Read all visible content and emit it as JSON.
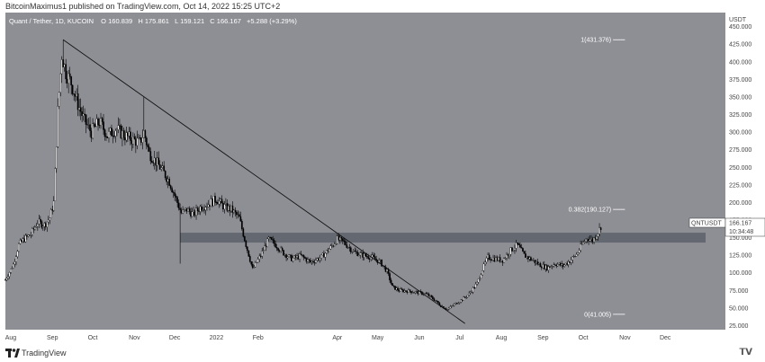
{
  "header": {
    "publisher": "BitcoinMaximus1 published on TradingView.com, Oct 14, 2022 15:25 UTC+2"
  },
  "footer": {
    "brand": "TradingView"
  },
  "colors": {
    "background": "#8e8f95",
    "candle": "#000000",
    "trendline": "#111111",
    "zone": "#555c66",
    "axis_bg": "#ffffff",
    "text": "#ffffff"
  },
  "chart_data": {
    "type": "candlestick",
    "symbol_label": "Quant / Tether, 1D, KUCOIN",
    "ohlc": {
      "open_label": "O",
      "open": "160.839",
      "high_label": "H",
      "high": "175.861",
      "low_label": "L",
      "low": "159.121",
      "close_label": "C",
      "close": "166.167",
      "change": "+5.288 (+3.29%)"
    },
    "currency": "USDT",
    "price_tag": "QNTUSDT",
    "last_price": "166.167",
    "countdown": "10:34:48",
    "ylim": [
      0,
      470
    ],
    "yticks": [
      "450.000",
      "425.000",
      "400.000",
      "375.000",
      "350.000",
      "325.000",
      "300.000",
      "275.000",
      "250.000",
      "225.000",
      "200.000",
      "175.000",
      "150.000",
      "125.000",
      "100.000",
      "75.000",
      "50.000",
      "25.000"
    ],
    "x_range": [
      "2021-07-28",
      "2022-12-31"
    ],
    "xticks": [
      {
        "label": "Aug",
        "date": "2021-08-01"
      },
      {
        "label": "Sep",
        "date": "2021-09-01"
      },
      {
        "label": "Oct",
        "date": "2021-10-01"
      },
      {
        "label": "Nov",
        "date": "2021-11-01"
      },
      {
        "label": "Dec",
        "date": "2021-12-01"
      },
      {
        "label": "2022",
        "date": "2022-01-01"
      },
      {
        "label": "Feb",
        "date": "2022-02-01"
      },
      {
        "label": "Apr",
        "date": "2022-04-01"
      },
      {
        "label": "May",
        "date": "2022-05-01"
      },
      {
        "label": "Jun",
        "date": "2022-06-01"
      },
      {
        "label": "Jul",
        "date": "2022-07-01"
      },
      {
        "label": "Aug",
        "date": "2022-08-01"
      },
      {
        "label": "Sep",
        "date": "2022-09-01"
      },
      {
        "label": "Oct",
        "date": "2022-10-01"
      },
      {
        "label": "Nov",
        "date": "2022-11-01"
      },
      {
        "label": "Dec",
        "date": "2022-12-01"
      }
    ],
    "price_path": [
      [
        "2021-07-28",
        90
      ],
      [
        "2021-08-03",
        112
      ],
      [
        "2021-08-07",
        140
      ],
      [
        "2021-08-11",
        148
      ],
      [
        "2021-08-16",
        155
      ],
      [
        "2021-08-21",
        172
      ],
      [
        "2021-08-26",
        168
      ],
      [
        "2021-08-30",
        178
      ],
      [
        "2021-09-02",
        200
      ],
      [
        "2021-09-05",
        330
      ],
      [
        "2021-09-08",
        410
      ],
      [
        "2021-09-11",
        385
      ],
      [
        "2021-09-15",
        370
      ],
      [
        "2021-09-20",
        340
      ],
      [
        "2021-09-25",
        315
      ],
      [
        "2021-09-30",
        300
      ],
      [
        "2021-10-06",
        315
      ],
      [
        "2021-10-12",
        295
      ],
      [
        "2021-10-18",
        305
      ],
      [
        "2021-10-25",
        295
      ],
      [
        "2021-10-30",
        290
      ],
      [
        "2021-11-05",
        285
      ],
      [
        "2021-11-08",
        300
      ],
      [
        "2021-11-12",
        270
      ],
      [
        "2021-11-17",
        258
      ],
      [
        "2021-11-22",
        245
      ],
      [
        "2021-11-27",
        230
      ],
      [
        "2021-12-02",
        205
      ],
      [
        "2021-12-06",
        185
      ],
      [
        "2021-12-10",
        190
      ],
      [
        "2021-12-15",
        183
      ],
      [
        "2021-12-20",
        193
      ],
      [
        "2021-12-26",
        198
      ],
      [
        "2022-01-01",
        205
      ],
      [
        "2022-01-06",
        195
      ],
      [
        "2022-01-12",
        190
      ],
      [
        "2022-01-18",
        178
      ],
      [
        "2022-01-23",
        140
      ],
      [
        "2022-01-28",
        105
      ],
      [
        "2022-02-03",
        125
      ],
      [
        "2022-02-09",
        148
      ],
      [
        "2022-02-14",
        140
      ],
      [
        "2022-02-20",
        128
      ],
      [
        "2022-02-26",
        120
      ],
      [
        "2022-03-05",
        124
      ],
      [
        "2022-03-12",
        115
      ],
      [
        "2022-03-20",
        122
      ],
      [
        "2022-03-28",
        138
      ],
      [
        "2022-04-01",
        148
      ],
      [
        "2022-04-06",
        143
      ],
      [
        "2022-04-13",
        130
      ],
      [
        "2022-04-20",
        125
      ],
      [
        "2022-04-27",
        122
      ],
      [
        "2022-05-03",
        115
      ],
      [
        "2022-05-08",
        102
      ],
      [
        "2022-05-12",
        80
      ],
      [
        "2022-05-17",
        75
      ],
      [
        "2022-05-24",
        74
      ],
      [
        "2022-05-31",
        72
      ],
      [
        "2022-06-06",
        70
      ],
      [
        "2022-06-12",
        62
      ],
      [
        "2022-06-17",
        53
      ],
      [
        "2022-06-22",
        48
      ],
      [
        "2022-06-27",
        55
      ],
      [
        "2022-07-03",
        62
      ],
      [
        "2022-07-08",
        70
      ],
      [
        "2022-07-14",
        85
      ],
      [
        "2022-07-18",
        105
      ],
      [
        "2022-07-22",
        122
      ],
      [
        "2022-07-27",
        120
      ],
      [
        "2022-08-02",
        118
      ],
      [
        "2022-08-08",
        132
      ],
      [
        "2022-08-13",
        140
      ],
      [
        "2022-08-18",
        125
      ],
      [
        "2022-08-24",
        118
      ],
      [
        "2022-08-29",
        112
      ],
      [
        "2022-09-04",
        107
      ],
      [
        "2022-09-10",
        113
      ],
      [
        "2022-09-16",
        110
      ],
      [
        "2022-09-21",
        117
      ],
      [
        "2022-09-26",
        126
      ],
      [
        "2022-09-30",
        140
      ],
      [
        "2022-10-04",
        150
      ],
      [
        "2022-10-08",
        146
      ],
      [
        "2022-10-12",
        158
      ],
      [
        "2022-10-14",
        166
      ]
    ],
    "spikes": [
      {
        "date": "2021-09-09",
        "high": 431.376
      },
      {
        "date": "2021-11-08",
        "high": 350
      },
      {
        "date": "2021-12-05",
        "low": 113
      }
    ],
    "trendline": {
      "from": [
        "2021-09-09",
        431.376
      ],
      "to": [
        "2022-07-05",
        28
      ]
    },
    "zone": {
      "from": "2021-12-05",
      "to": "2022-12-31",
      "low": 143,
      "high": 157
    },
    "fib_levels": [
      {
        "label": "1(431.376)",
        "value": 431.376,
        "from": "2022-09-25",
        "to": "2022-11-01"
      },
      {
        "label": "0.382(190.127)",
        "value": 190.127,
        "from": "2022-09-25",
        "to": "2022-11-01"
      },
      {
        "label": "0(41.005)",
        "value": 41.005,
        "from": "2022-09-25",
        "to": "2022-11-01"
      }
    ]
  }
}
